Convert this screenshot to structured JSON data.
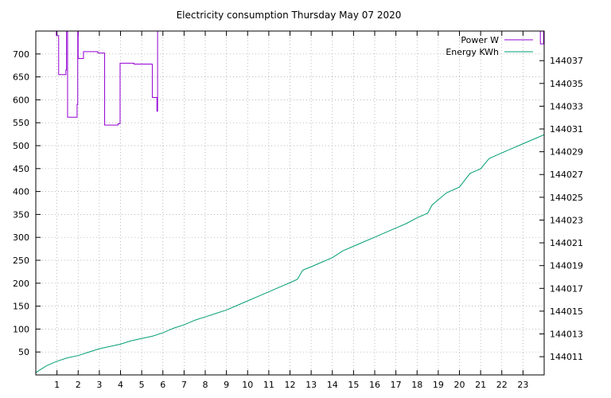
{
  "chart_data": {
    "type": "line",
    "title": "Electricity consumption Thursday May 07 2020",
    "xlabel": "",
    "ylabel": "",
    "y2label": "",
    "xlim": [
      0,
      24
    ],
    "ylim": [
      0,
      750
    ],
    "y2lim": [
      144009.4,
      144039.6
    ],
    "grid": true,
    "legend_position": "top-right",
    "x_ticks": [
      1,
      2,
      3,
      4,
      5,
      6,
      7,
      8,
      9,
      10,
      11,
      12,
      13,
      14,
      15,
      16,
      17,
      18,
      19,
      20,
      21,
      22,
      23
    ],
    "y_ticks": [
      50,
      100,
      150,
      200,
      250,
      300,
      350,
      400,
      450,
      500,
      550,
      600,
      650,
      700
    ],
    "y2_ticks": [
      144011,
      144013,
      144015,
      144017,
      144019,
      144021,
      144023,
      144025,
      144027,
      144029,
      144031,
      144033,
      144035,
      144037
    ],
    "series": [
      {
        "name": "Power W",
        "axis": "y",
        "color": "#9400d3",
        "step": true,
        "clip_above": 750,
        "points": [
          [
            0.95,
            750
          ],
          [
            0.97,
            740
          ],
          [
            1.05,
            740
          ],
          [
            1.08,
            655
          ],
          [
            1.4,
            655
          ],
          [
            1.42,
            665
          ],
          [
            1.45,
            750
          ],
          [
            1.48,
            750
          ],
          [
            1.5,
            562
          ],
          [
            1.92,
            562
          ],
          [
            1.95,
            590
          ],
          [
            1.98,
            750
          ],
          [
            2.0,
            690
          ],
          [
            2.22,
            690
          ],
          [
            2.25,
            705
          ],
          [
            2.9,
            705
          ],
          [
            2.93,
            702
          ],
          [
            3.22,
            702
          ],
          [
            3.25,
            545
          ],
          [
            3.85,
            545
          ],
          [
            3.88,
            548
          ],
          [
            3.95,
            548
          ],
          [
            3.98,
            680
          ],
          [
            4.6,
            680
          ],
          [
            4.63,
            678
          ],
          [
            5.48,
            678
          ],
          [
            5.5,
            605
          ],
          [
            5.7,
            605
          ],
          [
            5.72,
            575
          ],
          [
            5.75,
            750
          ],
          [
            5.77,
            750
          ]
        ],
        "late_segment": [
          [
            23.8,
            750
          ],
          [
            23.82,
            722
          ],
          [
            23.95,
            722
          ],
          [
            23.97,
            750
          ]
        ]
      },
      {
        "name": "Energy KWh",
        "axis": "y2",
        "color": "#009e73",
        "points": [
          [
            0,
            144009.6
          ],
          [
            0.5,
            144010.2
          ],
          [
            1,
            144010.6
          ],
          [
            1.5,
            144010.9
          ],
          [
            2,
            144011.1
          ],
          [
            2.5,
            144011.4
          ],
          [
            3,
            144011.7
          ],
          [
            3.5,
            144011.9
          ],
          [
            4,
            144012.1
          ],
          [
            4.5,
            144012.4
          ],
          [
            5,
            144012.6
          ],
          [
            5.5,
            144012.8
          ],
          [
            6,
            144013.1
          ],
          [
            6.5,
            144013.5
          ],
          [
            7,
            144013.8
          ],
          [
            7.5,
            144014.2
          ],
          [
            8,
            144014.5
          ],
          [
            8.5,
            144014.8
          ],
          [
            9,
            144015.1
          ],
          [
            9.5,
            144015.5
          ],
          [
            10,
            144015.9
          ],
          [
            10.5,
            144016.3
          ],
          [
            11,
            144016.7
          ],
          [
            11.5,
            144017.1
          ],
          [
            12,
            144017.5
          ],
          [
            12.35,
            144017.8
          ],
          [
            12.6,
            144018.6
          ],
          [
            13,
            144018.9
          ],
          [
            13.5,
            144019.3
          ],
          [
            14,
            144019.7
          ],
          [
            14.5,
            144020.3
          ],
          [
            15,
            144020.7
          ],
          [
            15.5,
            144021.1
          ],
          [
            16,
            144021.5
          ],
          [
            16.5,
            144021.9
          ],
          [
            17,
            144022.3
          ],
          [
            17.5,
            144022.7
          ],
          [
            18,
            144023.2
          ],
          [
            18.5,
            144023.6
          ],
          [
            18.7,
            144024.3
          ],
          [
            19,
            144024.8
          ],
          [
            19.4,
            144025.4
          ],
          [
            20,
            144025.9
          ],
          [
            20.5,
            144027.1
          ],
          [
            21,
            144027.5
          ],
          [
            21.4,
            144028.4
          ],
          [
            22,
            144028.9
          ],
          [
            22.5,
            144029.3
          ],
          [
            23,
            144029.7
          ],
          [
            23.5,
            144030.1
          ],
          [
            24,
            144030.5
          ]
        ]
      }
    ]
  }
}
